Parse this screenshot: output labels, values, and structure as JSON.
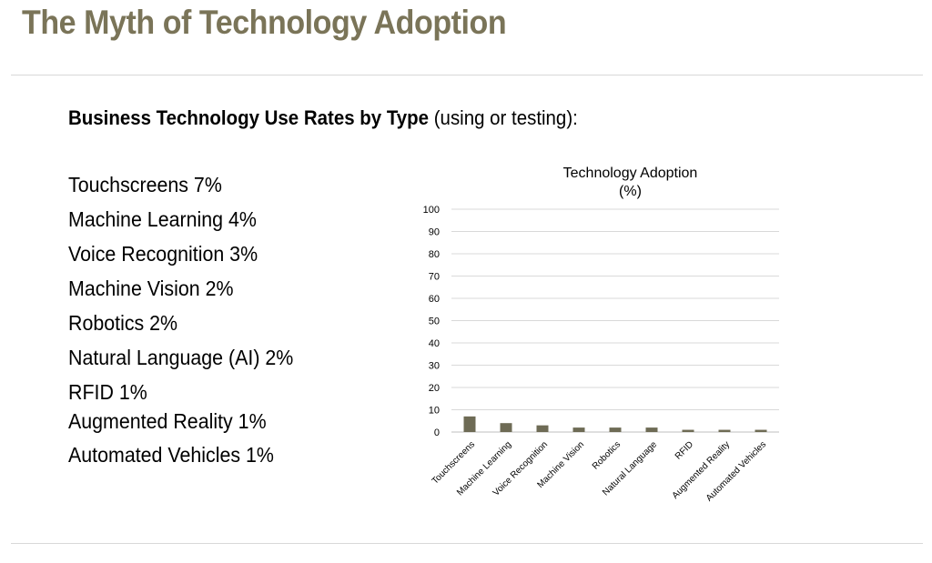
{
  "slide": {
    "title": "The Myth of Technology Adoption",
    "subheading_bold": "Business Technology Use Rates by Type",
    "subheading_rest": " (using or testing):"
  },
  "rates": [
    {
      "text": "Touchscreens 7%"
    },
    {
      "text": "Machine Learning 4%"
    },
    {
      "text": "Voice Recognition 3%"
    },
    {
      "text": "Machine Vision 2%"
    },
    {
      "text": "Robotics 2%"
    },
    {
      "text": "Natural Language (AI) 2%"
    },
    {
      "text": "RFID 1%"
    },
    {
      "text": "Augmented Reality 1%"
    },
    {
      "text": "Automated Vehicles 1%"
    }
  ],
  "colors": {
    "title": "#7a7458",
    "bar": "#6e6b55",
    "grid": "#d9d9d9"
  },
  "chart_data": {
    "type": "bar",
    "title_line1": "Technology Adoption",
    "title_line2": "(%)",
    "categories": [
      "Touchscreens",
      "Machine Learning",
      "Voice Recognition",
      "Machine Vision",
      "Robotics",
      "Natural Language",
      "RFID",
      "Augmented Reality",
      "Automated Vehicles"
    ],
    "values": [
      7,
      4,
      3,
      2,
      2,
      2,
      1,
      1,
      1
    ],
    "ylim": [
      0,
      100
    ],
    "yticks": [
      0,
      10,
      20,
      30,
      40,
      50,
      60,
      70,
      80,
      90,
      100
    ],
    "grid": true,
    "legend": "none",
    "xlabel": "",
    "ylabel": ""
  }
}
